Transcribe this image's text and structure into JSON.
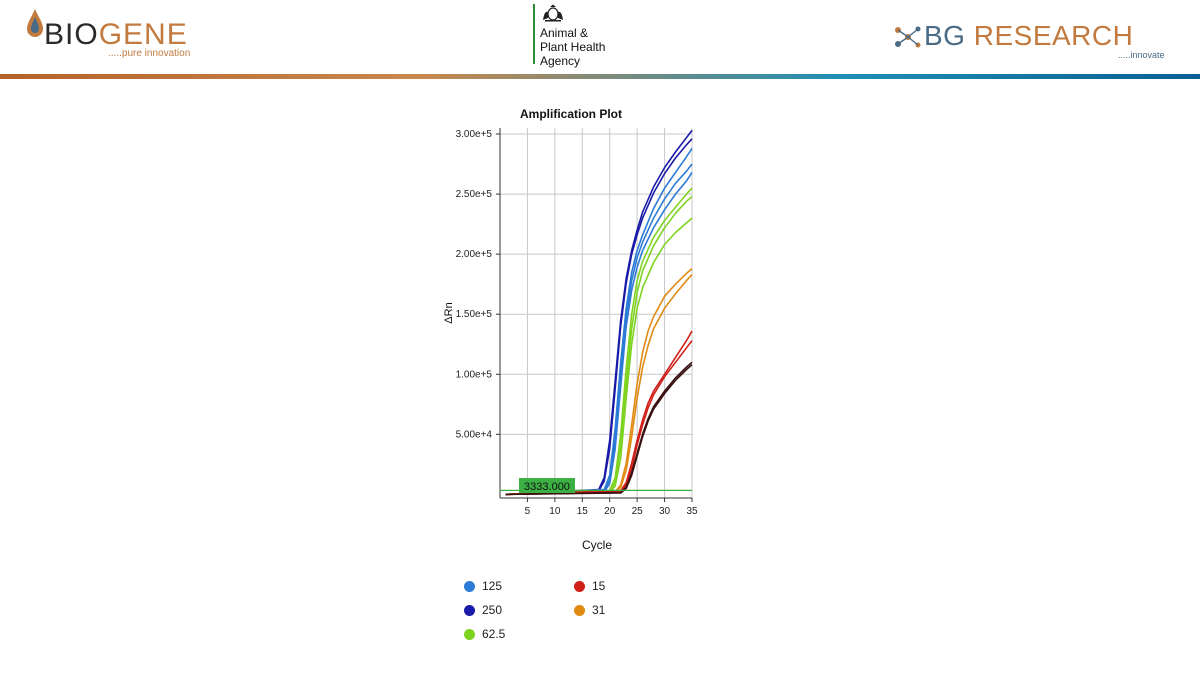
{
  "header": {
    "biogene": {
      "brand_bio": "BIO",
      "brand_gene": "GENE",
      "tagline": ".....pure innovation"
    },
    "apha": {
      "line1": "Animal &",
      "line2": "Plant Health",
      "line3": "Agency"
    },
    "bg_research": {
      "brand_bg": "BG",
      "brand_research": " RESEARCH",
      "tagline": ".....innovate"
    },
    "colors": {
      "copper": "#c27a3e",
      "slate": "#4a6b86",
      "apha_green": "#2e8b3a"
    }
  },
  "chart_data": {
    "type": "line",
    "title": "Amplification Plot",
    "xlabel": "Cycle",
    "ylabel": "ΔRn",
    "xlim": [
      0,
      35
    ],
    "ylim": [
      -3000,
      305000
    ],
    "xticks": [
      5,
      10,
      15,
      20,
      25,
      30,
      35
    ],
    "yticks": [
      50000,
      100000,
      150000,
      200000,
      250000,
      300000
    ],
    "ytick_labels": [
      "5.00e+4",
      "1.00e+5",
      "1.50e+5",
      "2.00e+5",
      "2.50e+5",
      "3.00e+5"
    ],
    "grid": true,
    "threshold": {
      "value": 3333,
      "label": "3333.000",
      "color": "#3cb043"
    },
    "legend_position": "bottom",
    "legend": [
      {
        "name": "125",
        "color": "#2b7ad6"
      },
      {
        "name": "250",
        "color": "#1a1aa8"
      },
      {
        "name": "62.5",
        "color": "#7ed321"
      },
      {
        "name": "15",
        "color": "#d0201a"
      },
      {
        "name": "31",
        "color": "#e08a12"
      }
    ],
    "series": [
      {
        "legend": "250",
        "color": "#1a1aa8",
        "cq": 20.6,
        "plateau": 300000,
        "x": [
          1,
          18,
          19,
          20,
          21,
          22,
          23,
          24,
          25,
          26,
          28,
          30,
          32,
          34,
          35
        ],
        "y": [
          0,
          4000,
          14000,
          45000,
          95000,
          145000,
          180000,
          203000,
          220000,
          235000,
          256000,
          272000,
          285000,
          297000,
          303000
        ]
      },
      {
        "legend": "250",
        "color": "#1a1aa8",
        "x": [
          1,
          18,
          19,
          20,
          21,
          22,
          23,
          24,
          25,
          26,
          28,
          30,
          32,
          34,
          35
        ],
        "y": [
          0,
          3000,
          11000,
          38000,
          88000,
          140000,
          176000,
          200000,
          216000,
          230000,
          251000,
          267000,
          280000,
          291000,
          296000
        ]
      },
      {
        "legend": "125",
        "color": "#2b7ad6",
        "x": [
          1,
          19,
          20,
          21,
          22,
          23,
          24,
          25,
          26,
          28,
          30,
          32,
          34,
          35
        ],
        "y": [
          0,
          4000,
          16000,
          55000,
          110000,
          155000,
          185000,
          203000,
          216000,
          238000,
          255000,
          268000,
          281000,
          288000
        ]
      },
      {
        "legend": "125",
        "color": "#2b7ad6",
        "x": [
          1,
          19,
          20,
          21,
          22,
          23,
          24,
          25,
          26,
          28,
          30,
          32,
          34,
          35
        ],
        "y": [
          0,
          3000,
          12000,
          46000,
          100000,
          148000,
          178000,
          197000,
          210000,
          230000,
          246000,
          259000,
          269000,
          275000
        ]
      },
      {
        "legend": "125",
        "color": "#2b7ad6",
        "x": [
          1,
          19,
          20,
          21,
          22,
          23,
          24,
          25,
          26,
          28,
          30,
          32,
          34,
          35
        ],
        "y": [
          0,
          2000,
          9000,
          38000,
          90000,
          140000,
          170000,
          189000,
          203000,
          222000,
          237000,
          250000,
          261000,
          268000
        ]
      },
      {
        "legend": "62.5",
        "color": "#7ed321",
        "x": [
          1,
          20,
          21,
          22,
          23,
          24,
          25,
          26,
          28,
          30,
          32,
          34,
          35
        ],
        "y": [
          0,
          3000,
          14000,
          50000,
          105000,
          150000,
          178000,
          194000,
          214000,
          228000,
          239000,
          250000,
          255000
        ]
      },
      {
        "legend": "62.5",
        "color": "#7ed321",
        "x": [
          1,
          20,
          21,
          22,
          23,
          24,
          25,
          26,
          28,
          30,
          32,
          34,
          35
        ],
        "y": [
          0,
          2000,
          10000,
          40000,
          92000,
          138000,
          168000,
          186000,
          207000,
          222000,
          234000,
          244000,
          248000
        ]
      },
      {
        "legend": "62.5",
        "color": "#7ed321",
        "x": [
          1,
          20,
          21,
          22,
          23,
          24,
          25,
          26,
          28,
          30,
          32,
          34,
          35
        ],
        "y": [
          0,
          1500,
          7000,
          30000,
          80000,
          125000,
          155000,
          172000,
          193000,
          208000,
          218000,
          226000,
          230000
        ]
      },
      {
        "legend": "31",
        "color": "#e08a12",
        "x": [
          1,
          21,
          22,
          23,
          24,
          25,
          26,
          27,
          28,
          30,
          32,
          34,
          35
        ],
        "y": [
          0,
          2000,
          8000,
          26000,
          58000,
          92000,
          118000,
          136000,
          148000,
          165000,
          175000,
          184000,
          188000
        ]
      },
      {
        "legend": "31",
        "color": "#e08a12",
        "x": [
          1,
          21,
          22,
          23,
          24,
          25,
          26,
          27,
          28,
          30,
          32,
          34,
          35
        ],
        "y": [
          0,
          1500,
          6000,
          20000,
          48000,
          80000,
          106000,
          124000,
          138000,
          155000,
          167000,
          178000,
          183000
        ]
      },
      {
        "legend": "15",
        "color": "#d0201a",
        "x": [
          1,
          22,
          23,
          24,
          25,
          26,
          27,
          28,
          30,
          32,
          34,
          35
        ],
        "y": [
          0,
          3000,
          10000,
          26000,
          45000,
          62000,
          76000,
          86000,
          100000,
          114000,
          128000,
          136000
        ]
      },
      {
        "legend": "15",
        "color": "#d0201a",
        "x": [
          1,
          22,
          23,
          24,
          25,
          26,
          27,
          28,
          30,
          32,
          34,
          35
        ],
        "y": [
          0,
          2000,
          8000,
          22000,
          41000,
          58000,
          72000,
          83000,
          98000,
          110000,
          122000,
          128000
        ]
      },
      {
        "legend": "15",
        "color": "#3a1010",
        "x": [
          1,
          22,
          23,
          24,
          25,
          26,
          27,
          28,
          30,
          32,
          34,
          35
        ],
        "y": [
          0,
          1500,
          6000,
          18000,
          34000,
          50000,
          63000,
          73000,
          86000,
          97000,
          106000,
          110000
        ]
      },
      {
        "legend": "15",
        "color": "#3a1010",
        "x": [
          1,
          22,
          23,
          24,
          25,
          26,
          27,
          28,
          30,
          32,
          34,
          35
        ],
        "y": [
          0,
          1200,
          5000,
          16000,
          32000,
          48000,
          61000,
          71000,
          84000,
          95000,
          104000,
          108000
        ]
      }
    ]
  }
}
